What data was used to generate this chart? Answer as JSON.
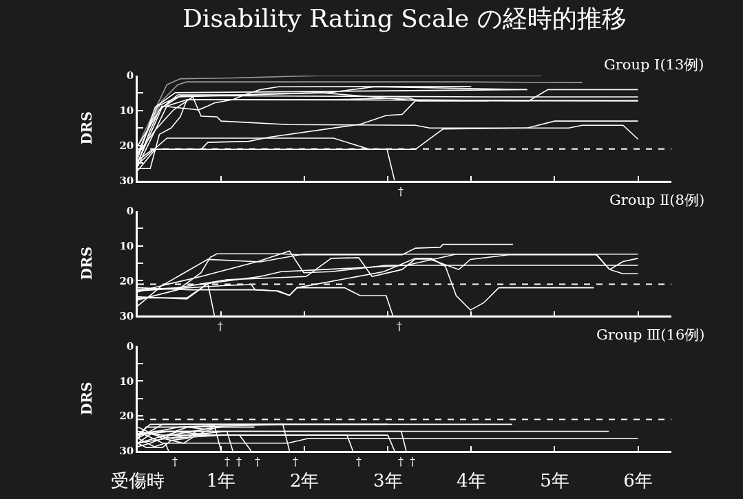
{
  "chart_data": [
    {
      "type": "line",
      "title": "Disability Rating Scale の経時的推移",
      "ylabel": "DRS",
      "tick_labels": "y",
      "annotations": [
        "Group Ⅰ(13例)",
        {
          "text": "†",
          "x": 3.08,
          "y": 30
        }
      ],
      "xlim": [
        0,
        6.4
      ],
      "xticks": [
        {
          "value": 0,
          "label": null
        },
        {
          "value": 1,
          "label": null
        },
        {
          "value": 2,
          "label": null
        },
        {
          "value": 3,
          "label": null
        },
        {
          "value": 4,
          "label": null
        },
        {
          "value": 5,
          "label": null
        },
        {
          "value": 6,
          "label": null
        }
      ],
      "ylim": [
        30,
        0
      ],
      "yticks": [
        0,
        {
          "value": 5,
          "label": null
        },
        10,
        {
          "value": 15,
          "label": null
        },
        20,
        {
          "value": 25,
          "label": null
        },
        30
      ],
      "ref_lines": [
        {
          "axis": "y",
          "value": 21,
          "line_style": "dashed",
          "color": "#ffffff"
        }
      ],
      "series": [
        {
          "color": "#9a9a9a",
          "x": [
            0,
            0.35,
            0.51,
            1.11,
            2.21,
            4.84
          ],
          "values": [
            20.2,
            2.6,
            0.9,
            0.7,
            0,
            0
          ]
        },
        {
          "color": "#9a9a9a",
          "x": [
            0,
            0.29,
            0.48,
            0.59,
            3.88,
            5.33
          ],
          "values": [
            22,
            7.2,
            2.6,
            1.8,
            1.8,
            2.0
          ]
        },
        {
          "color": "#ffffff",
          "x": [
            0,
            0.15,
            0.26,
            0.48,
            1.28,
            1.47,
            1.69,
            4.0
          ],
          "values": [
            25,
            15.6,
            9.8,
            5.5,
            5.5,
            4.0,
            3.2,
            3.1
          ]
        },
        {
          "color": "#ffffff",
          "x": [
            0,
            0.21,
            0.45,
            4.67
          ],
          "values": [
            23.7,
            9.0,
            4.9,
            4.0
          ]
        },
        {
          "color": "#ffffff",
          "x": [
            0,
            0.24,
            0.48,
            2.21,
            3.22,
            4.69,
            4.92,
            6.0
          ],
          "values": [
            22.5,
            8.7,
            6.1,
            4.9,
            6.9,
            7.2,
            4.0,
            4.0
          ]
        },
        {
          "color": "#ffffff",
          "x": [
            0,
            0.29,
            0.51,
            1.3,
            4.21,
            6.0
          ],
          "values": [
            24.9,
            9.2,
            5.8,
            5.8,
            6.1,
            6.1
          ]
        },
        {
          "color": "#ffffff",
          "x": [
            0,
            0.35,
            0.59,
            1.11,
            6.0
          ],
          "values": [
            26,
            8.7,
            6.9,
            6.9,
            7.2
          ]
        },
        {
          "color": "#ffffff",
          "x": [
            0,
            0.21,
            0.43,
            0.66,
            0.76,
            0.95,
            1.0,
            1.8,
            3.33,
            3.5,
            5.17,
            5.33,
            5.82,
            6.0
          ],
          "values": [
            22.5,
            15.6,
            9.8,
            6.1,
            11.6,
            11.8,
            13.0,
            14.0,
            14.2,
            15.0,
            15.0,
            14.2,
            14.2,
            18.2
          ]
        },
        {
          "color": "#ffffff",
          "x": [
            0,
            0.21,
            0.35,
            2.35,
            2.78,
            3.33,
            3.66,
            4.67,
            5.0,
            6.0
          ],
          "values": [
            25.4,
            20.8,
            17.9,
            17.9,
            21.1,
            21.1,
            15.3,
            15.0,
            13.0,
            13.0
          ]
        },
        {
          "color": "#ffffff",
          "x": [
            0,
            0.21,
            0.76,
            0.84,
            1.33,
            1.58,
            2.67,
            2.98,
            3.17,
            3.33,
            4.21
          ],
          "values": [
            27.2,
            21.1,
            21.1,
            19.1,
            18.8,
            17.6,
            13.9,
            11.4,
            11.1,
            7.2,
            7.2
          ]
        },
        {
          "color": "#ffffff",
          "x": [
            0,
            0.18,
            2.99,
            3.08
          ],
          "values": [
            24.3,
            21.1,
            21.1,
            30
          ]
        },
        {
          "color": "#ffffff",
          "x": [
            0,
            0.29,
            0.73,
            0.84,
            0.92,
            1.14,
            1.28,
            1.52,
            2.29,
            2.84,
            4.67
          ],
          "values": [
            20.2,
            8.7,
            9.8,
            8.7,
            7.8,
            6.9,
            5.5,
            5.2,
            4.9,
            3.2,
            4.0
          ]
        },
        {
          "color": "#ffffff",
          "x": [
            0,
            0.15,
            0.26,
            0.4,
            0.51,
            0.59,
            2.29,
            3.25,
            3.36,
            6.0
          ],
          "values": [
            26.6,
            26.6,
            16.8,
            15.0,
            11.8,
            6.9,
            6.9,
            6.4,
            7.2,
            7.2
          ]
        }
      ]
    },
    {
      "type": "line",
      "ylabel": "DRS",
      "tick_labels": "y",
      "annotations": [
        "Group Ⅱ(8例)",
        {
          "text": "†",
          "x": 0.92,
          "y": 30
        },
        {
          "text": "†",
          "x": 3.06,
          "y": 30
        }
      ],
      "xlim": [
        0,
        6.4
      ],
      "xticks": [
        {
          "value": 0,
          "label": null
        },
        {
          "value": 1,
          "label": null
        },
        {
          "value": 2,
          "label": null
        },
        {
          "value": 3,
          "label": null
        },
        {
          "value": 4,
          "label": null
        },
        {
          "value": 5,
          "label": null
        },
        {
          "value": 6,
          "label": null
        }
      ],
      "ylim": [
        30,
        0
      ],
      "yticks": [
        0,
        {
          "value": 5,
          "label": null
        },
        10,
        {
          "value": 15,
          "label": null
        },
        20,
        {
          "value": 25,
          "label": null
        },
        30
      ],
      "ref_lines": [
        {
          "axis": "y",
          "value": 21,
          "line_style": "dashed",
          "color": "#ffffff"
        }
      ],
      "series": [
        {
          "color": "#ffffff",
          "x": [
            0,
            0.48,
            0.76,
            0.87,
            0.95,
            1.69,
            1.99,
            3.17,
            3.33,
            3.63,
            3.66,
            4.5
          ],
          "values": [
            25.5,
            22.6,
            17.7,
            13.3,
            12.3,
            12.3,
            12.6,
            12.6,
            10.7,
            10.4,
            9.6,
            9.6
          ]
        },
        {
          "color": "#ffffff",
          "x": [
            0,
            0.29,
            0.76,
            1.44,
            1.82,
            1.99,
            2.32,
            2.98,
            6.0
          ],
          "values": [
            23.2,
            21.4,
            18.8,
            14.5,
            11.5,
            17.7,
            17.4,
            15.6,
            15.6
          ]
        },
        {
          "color": "#ffffff",
          "x": [
            0,
            0.29,
            0.84,
            1.47,
            1.99,
            3.17,
            6.0
          ],
          "values": [
            27.2,
            21.4,
            13.9,
            14.6,
            12.4,
            12.4,
            12.4
          ]
        },
        {
          "color": "#ffffff",
          "x": [
            0,
            0.48,
            1.08,
            2.02,
            2.32,
            2.65,
            2.81,
            3.17,
            3.33,
            3.5,
            3.85,
            3.99,
            4.45,
            5.5,
            5.66,
            5.82,
            6.0
          ],
          "values": [
            22.6,
            22.0,
            19.7,
            18.8,
            13.6,
            13.4,
            18.8,
            16.8,
            13.8,
            13.8,
            16.8,
            13.9,
            12.6,
            12.6,
            16.8,
            14.5,
            13.6
          ]
        },
        {
          "color": "#ffffff",
          "x": [
            0,
            0.59,
            0.84,
            1.47,
            1.72,
            3.22,
            3.82,
            5.5,
            5.66,
            5.82,
            6.0
          ],
          "values": [
            24.9,
            24.9,
            20.8,
            18.8,
            17.4,
            15.6,
            12.4,
            12.4,
            16.8,
            18.0,
            18.0
          ]
        },
        {
          "color": "#ffffff",
          "x": [
            0,
            0.62,
            1.41,
            1.66,
            1.82,
            1.91,
            2.95,
            3.33,
            3.52,
            3.69,
            3.82,
            3.99,
            4.15,
            4.33,
            5.47
          ],
          "values": [
            22.0,
            22.6,
            22.6,
            22.9,
            24.2,
            22.0,
            17.4,
            13.6,
            13.6,
            15.9,
            24.3,
            28.4,
            26.3,
            22.0,
            22.0
          ]
        },
        {
          "color": "#ffffff",
          "x": [
            0,
            1.03,
            1.36,
            1.41,
            1.69,
            1.82,
            1.91,
            2.48,
            2.67,
            2.98,
            3.06
          ],
          "values": [
            22.9,
            21.4,
            21.1,
            22.6,
            22.9,
            24.2,
            22.0,
            22.0,
            24.3,
            24.3,
            30
          ]
        },
        {
          "color": "#ffffff",
          "x": [
            0,
            0.59,
            0.84,
            0.92
          ],
          "values": [
            24.6,
            25.2,
            20.8,
            30
          ]
        }
      ]
    },
    {
      "type": "line",
      "ylabel": "DRS",
      "annotations": [
        "Group Ⅲ(16例)",
        {
          "text": "†",
          "x": 0.37,
          "y": 30
        },
        {
          "text": "†",
          "x": 1.0,
          "y": 30
        },
        {
          "text": "†",
          "x": 1.14,
          "y": 30
        },
        {
          "text": "†",
          "x": 1.36,
          "y": 30
        },
        {
          "text": "†",
          "x": 1.82,
          "y": 30
        },
        {
          "text": "†",
          "x": 2.58,
          "y": 30
        },
        {
          "text": "†",
          "x": 3.08,
          "y": 30
        },
        {
          "text": "†",
          "x": 3.22,
          "y": 30
        }
      ],
      "xlim": [
        0,
        6.4
      ],
      "xticks": [
        {
          "value": 0,
          "label": "受傷時"
        },
        {
          "value": 1,
          "label": "1年"
        },
        {
          "value": 2,
          "label": "2年"
        },
        {
          "value": 3,
          "label": "3年"
        },
        {
          "value": 4,
          "label": "4年"
        },
        {
          "value": 5,
          "label": "5年"
        },
        {
          "value": 6,
          "label": "6年"
        }
      ],
      "ylim": [
        30,
        0
      ],
      "yticks": [
        0,
        {
          "value": 5,
          "label": null
        },
        10,
        {
          "value": 15,
          "label": null
        },
        20,
        {
          "value": 25,
          "label": null
        },
        30
      ],
      "ref_lines": [
        {
          "axis": "y",
          "value": 21,
          "line_style": "dashed",
          "color": "#ffffff"
        }
      ],
      "series": [
        {
          "color": "#ffffff",
          "x": [
            0,
            0.15,
            4.49
          ],
          "values": [
            25.5,
            22.4,
            22.4
          ]
        },
        {
          "color": "#ffffff",
          "x": [
            0,
            0.2,
            5.65
          ],
          "values": [
            27.8,
            24.4,
            24.4
          ]
        },
        {
          "color": "#ffffff",
          "x": [
            0,
            0.3,
            1.8,
            2.05,
            6.0
          ],
          "values": [
            24.4,
            27.8,
            27.8,
            26.4,
            26.4
          ]
        },
        {
          "color": "#ffffff",
          "x": [
            0,
            0.1,
            0.6,
            1.75,
            3.0
          ],
          "values": [
            26.4,
            23.2,
            23.2,
            22.4,
            22.4
          ]
        },
        {
          "color": "#ffffff",
          "x": [
            0,
            0.5,
            0.92,
            1.0
          ],
          "values": [
            25.5,
            23.2,
            22.8,
            30
          ]
        },
        {
          "color": "#ffffff",
          "x": [
            0,
            0.6,
            1.07,
            1.14
          ],
          "values": [
            27.8,
            25.5,
            24.4,
            30
          ]
        },
        {
          "color": "#ffffff",
          "x": [
            0,
            0.4,
            1.0,
            1.22,
            1.36
          ],
          "values": [
            24.4,
            26.4,
            25.5,
            25.5,
            30
          ]
        },
        {
          "color": "#ffffff",
          "x": [
            0,
            0.3,
            1.74,
            1.82
          ],
          "values": [
            26.4,
            22.4,
            22.4,
            30
          ]
        },
        {
          "color": "#ffffff",
          "x": [
            0,
            0.4,
            0.9,
            2.51,
            2.58
          ],
          "values": [
            25.5,
            24.4,
            25.5,
            25.5,
            30
          ]
        },
        {
          "color": "#ffffff",
          "x": [
            0,
            0.5,
            3.16,
            3.22
          ],
          "values": [
            27.8,
            24.4,
            24.4,
            30
          ]
        },
        {
          "color": "#ffffff",
          "x": [
            0,
            0.2,
            0.33,
            0.37
          ],
          "values": [
            26.4,
            28.8,
            27.8,
            30
          ]
        },
        {
          "color": "#ffffff",
          "x": [
            0,
            0.3,
            3.0,
            3.08
          ],
          "values": [
            24.4,
            25.5,
            25.5,
            30
          ]
        },
        {
          "color": "#ffffff",
          "x": [
            0,
            0.3,
            0.55,
            0.7,
            0.95,
            1.4
          ],
          "values": [
            23.2,
            26.4,
            27.8,
            25.5,
            23.2,
            23.2
          ]
        },
        {
          "color": "#ffffff",
          "x": [
            0,
            0.15,
            0.4,
            0.8,
            1.0
          ],
          "values": [
            28.8,
            27.8,
            25.5,
            23.8,
            23.2
          ]
        },
        {
          "color": "#ffffff",
          "x": [
            0,
            0.1,
            0.3,
            0.4,
            0.6,
            0.7,
            0.9
          ],
          "values": [
            27.8,
            29.0,
            29.0,
            27.0,
            26.4,
            24.4,
            23.2
          ]
        },
        {
          "color": "#ffffff",
          "x": [
            0,
            0.2,
            0.45,
            0.6,
            0.8
          ],
          "values": [
            25.5,
            24.4,
            24.4,
            23.2,
            23.8
          ]
        }
      ]
    }
  ]
}
